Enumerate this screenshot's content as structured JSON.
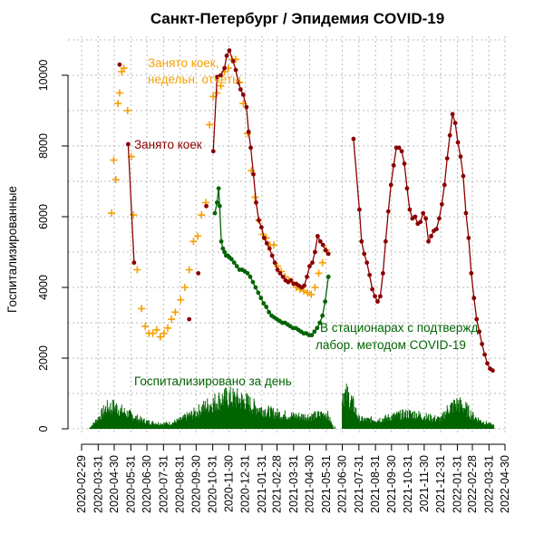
{
  "chart_data": {
    "type": "line",
    "title": "Санкт-Петербург / Эпидемия COVID-19",
    "ylabel": "Госпитализированные",
    "xlabel": "",
    "ylim": [
      0,
      11000
    ],
    "xlim": [
      "2020-02-29",
      "2022-04-30"
    ],
    "grid": true,
    "y_ticks": [
      0,
      2000,
      4000,
      6000,
      8000,
      10000
    ],
    "x_ticks": [
      "2020-02-29",
      "2020-03-31",
      "2020-04-30",
      "2020-05-31",
      "2020-06-30",
      "2020-07-31",
      "2020-08-31",
      "2020-09-30",
      "2020-10-31",
      "2020-11-30",
      "2020-12-31",
      "2021-01-31",
      "2021-02-28",
      "2021-03-31",
      "2021-04-30",
      "2021-05-31",
      "2021-06-30",
      "2021-07-31",
      "2021-08-31",
      "2021-09-30",
      "2021-10-31",
      "2021-11-30",
      "2021-12-31",
      "2022-01-31",
      "2022-02-28",
      "2022-03-31",
      "2022-04-30"
    ],
    "annotations": [
      {
        "text": "Занято коек,",
        "color": "#f5a000"
      },
      {
        "text": "недельн. отчеты",
        "color": "#f5a000"
      },
      {
        "text": "Занято коек",
        "color": "#8b0000"
      },
      {
        "text": "В стационарах с подтвержд.",
        "color": "#006400"
      },
      {
        "text": "лабор. методом COVID-19",
        "color": "#006400"
      },
      {
        "text": "Госпитализировано за день",
        "color": "#006400"
      }
    ],
    "series": [
      {
        "name": "Занято коек, недельн. отчеты",
        "color": "#f5a000",
        "marker": "plus",
        "x": [
          "2020-04-25",
          "2020-04-29",
          "2020-05-03",
          "2020-05-07",
          "2020-05-10",
          "2020-05-14",
          "2020-05-18",
          "2020-05-25",
          "2020-06-01",
          "2020-06-05",
          "2020-06-12",
          "2020-06-20",
          "2020-06-27",
          "2020-07-04",
          "2020-07-11",
          "2020-07-18",
          "2020-07-25",
          "2020-08-01",
          "2020-08-08",
          "2020-08-15",
          "2020-08-22",
          "2020-09-01",
          "2020-09-09",
          "2020-09-17",
          "2020-09-25",
          "2020-10-03",
          "2020-10-10",
          "2020-10-18",
          "2020-10-25",
          "2020-11-01",
          "2020-11-08",
          "2020-11-15",
          "2020-11-22",
          "2020-11-29",
          "2020-12-06",
          "2020-12-13",
          "2020-12-20",
          "2020-12-27",
          "2021-01-04",
          "2021-01-11",
          "2021-01-18",
          "2021-01-25",
          "2021-02-01",
          "2021-02-08",
          "2021-02-15",
          "2021-02-22",
          "2021-03-01",
          "2021-03-08",
          "2021-03-15",
          "2021-03-22",
          "2021-03-29",
          "2021-04-05",
          "2021-04-12",
          "2021-04-19",
          "2021-04-26",
          "2021-05-03",
          "2021-05-10",
          "2021-05-17",
          "2021-05-24",
          "2021-05-31"
        ],
        "y": [
          6100,
          7600,
          7050,
          9200,
          9500,
          10100,
          10200,
          9000,
          7700,
          6050,
          4500,
          3400,
          2900,
          2700,
          2700,
          2800,
          2600,
          2700,
          2850,
          3100,
          3300,
          3650,
          4000,
          4500,
          5300,
          5450,
          6050,
          6400,
          8600,
          9400,
          9500,
          9700,
          10100,
          10200,
          10450,
          10450,
          9800,
          9200,
          8350,
          7300,
          6550,
          5900,
          5500,
          5400,
          5200,
          5200,
          4600,
          4450,
          4300,
          4200,
          4150,
          4000,
          3950,
          3900,
          3850,
          3800,
          4000,
          4400,
          4700,
          5050
        ]
      },
      {
        "name": "Занято коек",
        "color": "#8b0000",
        "marker": "dot",
        "x": [
          "2020-05-10",
          "2020-05-26",
          "2020-06-06",
          "2020-09-17",
          "2020-10-04",
          "2020-10-19",
          "2020-11-01",
          "2020-11-08",
          "2020-11-15",
          "2020-11-22",
          "2020-11-26",
          "2020-12-01",
          "2020-12-08",
          "2020-12-13",
          "2020-12-18",
          "2020-12-22",
          "2020-12-27",
          "2021-01-02",
          "2021-01-06",
          "2021-01-10",
          "2021-01-15",
          "2021-01-20",
          "2021-01-25",
          "2021-01-30",
          "2021-02-04",
          "2021-02-09",
          "2021-02-14",
          "2021-02-19",
          "2021-02-24",
          "2021-03-01",
          "2021-03-06",
          "2021-03-11",
          "2021-03-16",
          "2021-03-21",
          "2021-03-26",
          "2021-03-31",
          "2021-04-05",
          "2021-04-10",
          "2021-04-15",
          "2021-04-20",
          "2021-04-25",
          "2021-04-30",
          "2021-05-05",
          "2021-05-10",
          "2021-05-15",
          "2021-05-20",
          "2021-05-25",
          "2021-05-30",
          "2021-06-04",
          "2021-07-21",
          "2021-08-01",
          "2021-08-05",
          "2021-08-10",
          "2021-08-15",
          "2021-08-20",
          "2021-08-25",
          "2021-08-30",
          "2021-09-04",
          "2021-09-09",
          "2021-09-14",
          "2021-09-19",
          "2021-09-24",
          "2021-09-29",
          "2021-10-04",
          "2021-10-09",
          "2021-10-14",
          "2021-10-19",
          "2021-10-24",
          "2021-10-29",
          "2021-11-03",
          "2021-11-08",
          "2021-11-13",
          "2021-11-18",
          "2021-11-23",
          "2021-11-28",
          "2021-12-03",
          "2021-12-08",
          "2021-12-13",
          "2021-12-18",
          "2021-12-23",
          "2021-12-28",
          "2022-01-02",
          "2022-01-07",
          "2022-01-12",
          "2022-01-17",
          "2022-01-22",
          "2022-01-27",
          "2022-02-01",
          "2022-02-06",
          "2022-02-11",
          "2022-02-16",
          "2022-02-21",
          "2022-02-26",
          "2022-03-03",
          "2022-03-08",
          "2022-03-13",
          "2022-03-18",
          "2022-03-23",
          "2022-03-28",
          "2022-04-02",
          "2022-04-07"
        ],
        "y": [
          10300,
          8050,
          4700,
          3100,
          4400,
          6300,
          7850,
          9950,
          10000,
          10200,
          10550,
          10700,
          10400,
          10150,
          9800,
          9600,
          9450,
          9100,
          8400,
          7950,
          7200,
          6400,
          5900,
          5700,
          5400,
          5250,
          5100,
          4900,
          4700,
          4500,
          4400,
          4300,
          4200,
          4150,
          4200,
          4100,
          4100,
          4050,
          4000,
          4050,
          4300,
          4600,
          4700,
          5000,
          5450,
          5300,
          5200,
          5050,
          4950,
          8200,
          6200,
          5300,
          4950,
          4700,
          4350,
          3950,
          3750,
          3600,
          3750,
          4400,
          5300,
          6150,
          6900,
          7450,
          7950,
          7950,
          7850,
          7500,
          6800,
          6200,
          5950,
          6000,
          5800,
          5850,
          6100,
          5950,
          5300,
          5450,
          5600,
          5650,
          5950,
          6350,
          6900,
          7650,
          8300,
          8900,
          8650,
          8100,
          7700,
          7150,
          6100,
          5400,
          4400,
          3700,
          3100,
          2750,
          2400,
          2100,
          1850,
          1700,
          1650
        ]
      },
      {
        "name": "В стационарах с подтвержд. лабор. методом COVID-19",
        "color": "#006400",
        "marker": "dot",
        "x": [
          "2020-11-04",
          "2020-11-08",
          "2020-11-11",
          "2020-11-13",
          "2020-11-16",
          "2020-11-19",
          "2020-11-22",
          "2020-11-25",
          "2020-11-28",
          "2020-12-01",
          "2020-12-05",
          "2020-12-10",
          "2020-12-15",
          "2020-12-20",
          "2020-12-25",
          "2020-12-30",
          "2021-01-04",
          "2021-01-09",
          "2021-01-14",
          "2021-01-19",
          "2021-01-24",
          "2021-01-29",
          "2021-02-03",
          "2021-02-08",
          "2021-02-13",
          "2021-02-18",
          "2021-02-23",
          "2021-02-28",
          "2021-03-05",
          "2021-03-10",
          "2021-03-15",
          "2021-03-20",
          "2021-03-25",
          "2021-03-30",
          "2021-04-04",
          "2021-04-09",
          "2021-04-14",
          "2021-04-19",
          "2021-04-24",
          "2021-04-29",
          "2021-05-04",
          "2021-05-09",
          "2021-05-14",
          "2021-05-19",
          "2021-05-24",
          "2021-05-29",
          "2021-06-04"
        ],
        "y": [
          6100,
          6400,
          6800,
          6300,
          5300,
          5100,
          5000,
          4900,
          4900,
          4850,
          4800,
          4700,
          4600,
          4500,
          4500,
          4450,
          4400,
          4300,
          4150,
          4000,
          3850,
          3700,
          3550,
          3450,
          3300,
          3200,
          3150,
          3100,
          3050,
          3000,
          3000,
          2950,
          2900,
          2850,
          2850,
          2800,
          2750,
          2700,
          2700,
          2650,
          2650,
          2750,
          2850,
          3000,
          3200,
          3600,
          4300
        ]
      }
    ],
    "daily_hospitalized": {
      "name": "Госпитализировано за день",
      "color": "#006400",
      "type": "bar",
      "x": [
        "2020-03-15",
        "2020-04-01",
        "2020-04-15",
        "2020-05-01",
        "2020-05-15",
        "2020-06-01",
        "2020-06-15",
        "2020-07-01",
        "2020-07-15",
        "2020-08-01",
        "2020-08-15",
        "2020-09-01",
        "2020-09-15",
        "2020-10-01",
        "2020-10-15",
        "2020-11-01",
        "2020-11-15",
        "2020-12-01",
        "2020-12-15",
        "2021-01-01",
        "2021-01-15",
        "2021-02-01",
        "2021-02-15",
        "2021-03-01",
        "2021-03-15",
        "2021-04-01",
        "2021-04-15",
        "2021-05-01",
        "2021-05-15",
        "2021-06-01",
        "2021-06-15",
        "2021-07-01",
        "2021-07-15",
        "2021-08-01",
        "2021-08-15",
        "2021-09-01",
        "2021-09-15",
        "2021-10-01",
        "2021-10-15",
        "2021-11-01",
        "2021-11-15",
        "2021-12-01",
        "2021-12-15",
        "2022-01-01",
        "2022-01-15",
        "2022-02-01",
        "2022-02-15",
        "2022-03-01",
        "2022-03-15",
        "2022-04-01",
        "2022-04-10"
      ],
      "y": [
        30,
        350,
        650,
        700,
        550,
        420,
        300,
        220,
        180,
        160,
        180,
        280,
        400,
        520,
        680,
        820,
        920,
        980,
        940,
        860,
        700,
        600,
        520,
        470,
        430,
        400,
        390,
        380,
        420,
        480,
        0,
        1150,
        950,
        300,
        280,
        290,
        310,
        380,
        430,
        470,
        450,
        380,
        330,
        300,
        650,
        780,
        650,
        400,
        250,
        150,
        100
      ]
    }
  }
}
